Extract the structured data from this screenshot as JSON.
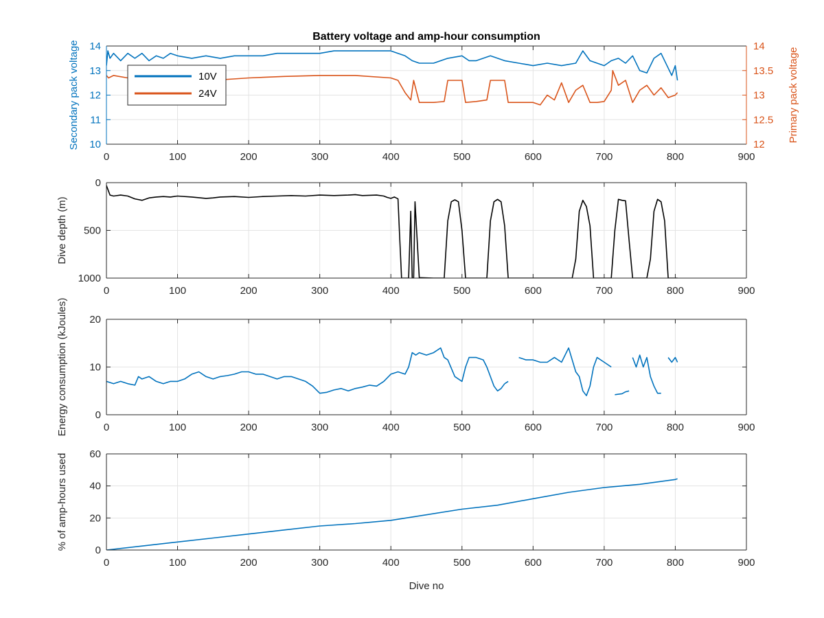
{
  "figure": {
    "title": "Battery voltage and amp-hour consumption",
    "xlabel": "Dive no"
  },
  "colors": {
    "blue": "#0072BD",
    "orange": "#D95319",
    "black": "#000000",
    "grid": "#e3e3e3",
    "axis": "#262626"
  },
  "chart_data": [
    {
      "type": "line",
      "title": "Battery voltage and amp-hour consumption",
      "xlabel": "",
      "xlim": [
        0,
        900
      ],
      "xticks": [
        "0",
        "100",
        "200",
        "300",
        "400",
        "500",
        "600",
        "700",
        "800",
        "900"
      ],
      "grid": true,
      "legend": {
        "placement": "top-left",
        "entries": [
          "10V",
          "24V"
        ]
      },
      "y_left": {
        "label": "Secondary pack voltage",
        "lim": [
          10,
          14
        ],
        "ticks": [
          "10",
          "11",
          "12",
          "13",
          "14"
        ]
      },
      "y_right": {
        "label": "Primary pack voltage",
        "lim": [
          12,
          14
        ],
        "ticks": [
          "12",
          "12.5",
          "13",
          "13.5",
          "14"
        ]
      },
      "series": [
        {
          "name": "10V",
          "axis": "left",
          "color": "#0072BD",
          "x": [
            0,
            2,
            5,
            10,
            20,
            30,
            40,
            50,
            60,
            70,
            80,
            90,
            100,
            120,
            140,
            160,
            180,
            200,
            220,
            240,
            260,
            280,
            300,
            320,
            340,
            360,
            380,
            400,
            410,
            420,
            430,
            440,
            460,
            480,
            500,
            510,
            520,
            540,
            560,
            580,
            600,
            620,
            640,
            660,
            670,
            680,
            700,
            710,
            720,
            730,
            740,
            750,
            760,
            770,
            780,
            790,
            795,
            800,
            803
          ],
          "y": [
            13.2,
            13.8,
            13.5,
            13.7,
            13.4,
            13.7,
            13.5,
            13.7,
            13.4,
            13.6,
            13.5,
            13.7,
            13.6,
            13.5,
            13.6,
            13.5,
            13.6,
            13.6,
            13.6,
            13.7,
            13.7,
            13.7,
            13.7,
            13.8,
            13.8,
            13.8,
            13.8,
            13.8,
            13.7,
            13.6,
            13.4,
            13.3,
            13.3,
            13.5,
            13.6,
            13.4,
            13.4,
            13.6,
            13.4,
            13.3,
            13.2,
            13.3,
            13.2,
            13.3,
            13.8,
            13.4,
            13.2,
            13.4,
            13.5,
            13.3,
            13.6,
            13.0,
            12.9,
            13.5,
            13.7,
            13.1,
            12.8,
            13.2,
            12.6
          ]
        },
        {
          "name": "24V",
          "axis": "right",
          "color": "#D95319",
          "x": [
            0,
            3,
            10,
            30,
            50,
            70,
            100,
            150,
            200,
            250,
            300,
            350,
            400,
            410,
            420,
            428,
            432,
            440,
            460,
            475,
            480,
            490,
            500,
            505,
            520,
            535,
            540,
            560,
            565,
            580,
            600,
            610,
            620,
            630,
            640,
            650,
            660,
            670,
            680,
            690,
            700,
            710,
            712,
            720,
            730,
            740,
            750,
            760,
            770,
            780,
            790,
            800,
            803
          ],
          "y": [
            13.4,
            13.35,
            13.4,
            13.35,
            13.3,
            13.3,
            13.35,
            13.3,
            13.35,
            13.38,
            13.4,
            13.4,
            13.35,
            13.3,
            13.05,
            12.9,
            13.3,
            12.85,
            12.85,
            12.87,
            13.3,
            13.3,
            13.3,
            12.85,
            12.87,
            12.9,
            13.3,
            13.3,
            12.85,
            12.85,
            12.85,
            12.8,
            13.0,
            12.9,
            13.25,
            12.85,
            13.1,
            13.2,
            12.85,
            12.85,
            12.87,
            13.1,
            13.5,
            13.2,
            13.3,
            12.85,
            13.1,
            13.2,
            13.0,
            13.15,
            12.95,
            13.0,
            13.05
          ]
        }
      ]
    },
    {
      "type": "line",
      "title": "",
      "xlabel": "",
      "xlim": [
        0,
        900
      ],
      "xticks": [
        "0",
        "100",
        "200",
        "300",
        "400",
        "500",
        "600",
        "700",
        "800",
        "900"
      ],
      "grid": true,
      "y_left": {
        "label": "Dive depth (m)",
        "lim": [
          0,
          1000
        ],
        "reversed": true,
        "ticks": [
          "0",
          "500",
          "1000"
        ]
      },
      "series": [
        {
          "color": "#000000",
          "x": [
            0,
            5,
            10,
            20,
            30,
            40,
            50,
            60,
            70,
            80,
            90,
            100,
            120,
            140,
            150,
            160,
            180,
            200,
            220,
            240,
            260,
            280,
            300,
            320,
            340,
            350,
            360,
            380,
            390,
            395,
            400,
            405,
            410,
            412,
            415,
            420,
            425,
            428,
            430,
            432,
            434,
            440,
            460,
            475,
            480,
            485,
            490,
            495,
            500,
            505,
            510,
            520,
            535,
            540,
            545,
            550,
            555,
            560,
            565,
            580,
            600,
            620,
            640,
            655,
            660,
            665,
            670,
            675,
            680,
            685,
            690,
            700,
            710,
            715,
            720,
            725,
            730,
            735,
            740,
            750,
            760,
            765,
            770,
            775,
            780,
            785,
            790,
            795,
            800,
            803
          ],
          "y": [
            30,
            130,
            140,
            130,
            140,
            170,
            185,
            160,
            150,
            145,
            150,
            140,
            150,
            165,
            160,
            150,
            145,
            155,
            145,
            140,
            135,
            140,
            130,
            135,
            130,
            125,
            135,
            130,
            140,
            155,
            165,
            150,
            170,
            500,
            1000,
            1000,
            1000,
            300,
            1000,
            1000,
            200,
            995,
            1000,
            1000,
            400,
            200,
            180,
            200,
            500,
            1000,
            1000,
            1000,
            1000,
            400,
            200,
            175,
            200,
            450,
            1000,
            1000,
            1000,
            1000,
            1000,
            1000,
            800,
            300,
            185,
            250,
            450,
            1000,
            1000,
            1000,
            1000,
            500,
            175,
            185,
            190,
            600,
            1000,
            1000,
            1000,
            800,
            300,
            175,
            200,
            400,
            1000,
            1000,
            1000,
            1000
          ]
        }
      ]
    },
    {
      "type": "line",
      "title": "",
      "xlabel": "",
      "xlim": [
        0,
        900
      ],
      "xticks": [
        "0",
        "100",
        "200",
        "300",
        "400",
        "500",
        "600",
        "700",
        "800",
        "900"
      ],
      "grid": true,
      "y_left": {
        "label": "Energy consumption (kJoules)",
        "lim": [
          0,
          20
        ],
        "ticks": [
          "0",
          "10",
          "20"
        ]
      },
      "series": [
        {
          "color": "#0072BD",
          "segments": [
            {
              "x": [
                0,
                10,
                20,
                30,
                40,
                45,
                50,
                60,
                70,
                80,
                90,
                100,
                110,
                120,
                130,
                140,
                150,
                160,
                170,
                180,
                190,
                200,
                210,
                220,
                230,
                240,
                250,
                260,
                270,
                280,
                290,
                300,
                310,
                320,
                330,
                340,
                350,
                360,
                370,
                380,
                390,
                400,
                410,
                420,
                425,
                430,
                435,
                440,
                450,
                460,
                470,
                475,
                480,
                490,
                500,
                505,
                510,
                520,
                530,
                535,
                540,
                545,
                550,
                555,
                560
              ],
              "y": [
                7,
                6.5,
                7,
                6.5,
                6.2,
                8,
                7.5,
                8,
                7,
                6.5,
                7,
                7,
                7.5,
                8.5,
                9,
                8,
                7.5,
                8,
                8.2,
                8.5,
                9,
                9,
                8.5,
                8.5,
                8,
                7.5,
                8,
                8,
                7.5,
                7,
                6,
                4.5,
                4.7,
                5.2,
                5.5,
                5,
                5.5,
                5.8,
                6.2,
                6,
                7,
                8.5,
                9,
                8.5,
                10,
                13,
                12.5,
                13,
                12.5,
                13,
                14,
                12,
                11.5,
                8,
                7,
                10,
                12,
                12,
                11.5,
                10,
                8,
                6,
                5,
                5.5,
                6.5
              ]
            },
            {
              "x": [
                560,
                565
              ],
              "y": [
                6.5,
                7
              ]
            },
            {
              "x": [
                580,
                590,
                600,
                610,
                620,
                630,
                640,
                650,
                660,
                665,
                670,
                675,
                680,
                685,
                690,
                700,
                710
              ],
              "y": [
                12,
                11.5,
                11.5,
                11,
                11,
                12,
                11,
                14,
                9,
                8,
                5,
                4,
                6,
                10,
                12,
                11,
                10
              ]
            },
            {
              "x": [
                715,
                720,
                725,
                730,
                735
              ],
              "y": [
                4.2,
                4.3,
                4.4,
                4.8,
                5
              ]
            },
            {
              "x": [
                740,
                745,
                750,
                755,
                760,
                765,
                770,
                775,
                780
              ],
              "y": [
                12,
                10,
                12.5,
                10,
                12,
                8,
                6,
                4.5,
                4.5
              ]
            },
            {
              "x": [
                790,
                795,
                800,
                803
              ],
              "y": [
                12,
                11,
                12,
                11
              ]
            }
          ]
        }
      ]
    },
    {
      "type": "line",
      "title": "",
      "xlabel": "Dive no",
      "xlim": [
        0,
        900
      ],
      "xticks": [
        "0",
        "100",
        "200",
        "300",
        "400",
        "500",
        "600",
        "700",
        "800",
        "900"
      ],
      "grid": true,
      "y_left": {
        "label": "% of amp-hours used",
        "lim": [
          0,
          60
        ],
        "ticks": [
          "0",
          "20",
          "40",
          "60"
        ]
      },
      "series": [
        {
          "color": "#0072BD",
          "x": [
            0,
            50,
            100,
            150,
            200,
            250,
            300,
            350,
            400,
            450,
            500,
            550,
            600,
            650,
            700,
            750,
            800,
            803
          ],
          "y": [
            0,
            2.5,
            5,
            7.5,
            10,
            12.5,
            15,
            16.5,
            18.5,
            22,
            25.5,
            28,
            32,
            36,
            39,
            41,
            44,
            44.5
          ]
        }
      ]
    }
  ]
}
